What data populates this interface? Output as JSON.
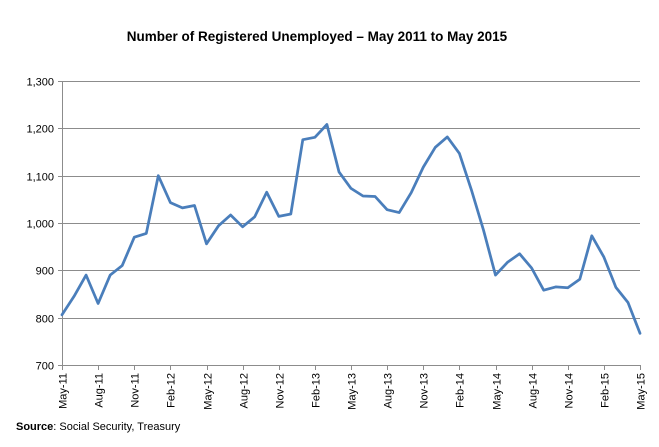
{
  "chart_data": {
    "type": "line",
    "title": "Number of Registered Unemployed – May 2011 to May 2015",
    "xlabel": "",
    "ylabel": "",
    "ylim": [
      700,
      1300
    ],
    "yticks": [
      "700",
      "800",
      "900",
      "1,000",
      "1,100",
      "1,200",
      "1,300"
    ],
    "ytick_values": [
      700,
      800,
      900,
      1000,
      1100,
      1200,
      1300
    ],
    "grid": true,
    "legend": "none",
    "x_tick_labels": [
      "May-11",
      "Aug-11",
      "Nov-11",
      "Feb-12",
      "May-12",
      "Aug-12",
      "Nov-12",
      "Feb-13",
      "May-13",
      "Aug-13",
      "Nov-13",
      "Feb-14",
      "May-14",
      "Aug-14",
      "Nov-14",
      "Feb-15",
      "May-15"
    ],
    "line_color": "#4a7ebb",
    "series": [
      {
        "x": [
          "May-11",
          "Jun-11",
          "Jul-11",
          "Aug-11",
          "Sep-11",
          "Oct-11",
          "Nov-11",
          "Dec-11",
          "Jan-12",
          "Feb-12",
          "Mar-12",
          "Apr-12",
          "May-12",
          "Jun-12",
          "Jul-12",
          "Aug-12",
          "Sep-12",
          "Oct-12",
          "Nov-12",
          "Dec-12",
          "Jan-13",
          "Feb-13",
          "Mar-13",
          "Apr-13",
          "May-13",
          "Jun-13",
          "Jul-13",
          "Aug-13",
          "Sep-13",
          "Oct-13",
          "Nov-13",
          "Dec-13",
          "Jan-14",
          "Feb-14",
          "Mar-14",
          "Apr-14",
          "May-14",
          "Jun-14",
          "Jul-14",
          "Aug-14",
          "Sep-14",
          "Oct-14",
          "Nov-14",
          "Dec-14",
          "Jan-15",
          "Feb-15",
          "Mar-15",
          "Apr-15",
          "May-15"
        ],
        "values": [
          806,
          845,
          890,
          830,
          890,
          910,
          970,
          978,
          1100,
          1043,
          1032,
          1037,
          956,
          994,
          1017,
          992,
          1013,
          1065,
          1014,
          1019,
          1176,
          1181,
          1208,
          1108,
          1073,
          1057,
          1056,
          1028,
          1022,
          1064,
          1118,
          1160,
          1182,
          1147,
          1070,
          985,
          890,
          917,
          935,
          905,
          858,
          865,
          863,
          881,
          973,
          928,
          864,
          832,
          767
        ]
      }
    ]
  },
  "source": {
    "label": "Source",
    "text": "Social Security, Treasury"
  }
}
